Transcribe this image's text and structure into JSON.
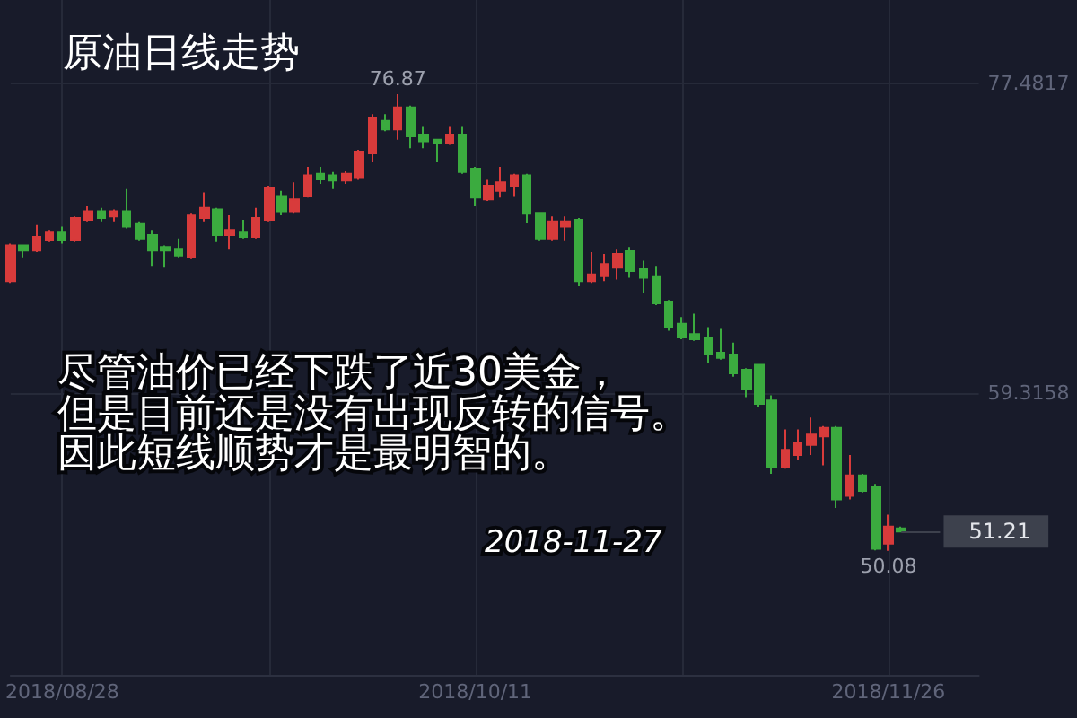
{
  "chart_data": {
    "type": "candlestick",
    "title": "原油日线走势",
    "categories": [
      null,
      null,
      null,
      null,
      "2018/08/28",
      null,
      null,
      null,
      null,
      null,
      null,
      null,
      null,
      null,
      null,
      null,
      null,
      null,
      null,
      null,
      null,
      null,
      null,
      null,
      null,
      null,
      null,
      null,
      null,
      null,
      null,
      null,
      null,
      null,
      null,
      null,
      "2018/10/11",
      null,
      null,
      null,
      null,
      null,
      null,
      null,
      null,
      null,
      null,
      null,
      null,
      null,
      null,
      null,
      null,
      null,
      null,
      null,
      null,
      null,
      null,
      null,
      null,
      null,
      null,
      null,
      null,
      null,
      null,
      null,
      "2018/11/26",
      null
    ],
    "ohlc": [
      [
        65.9,
        68.1,
        65.8,
        68.0
      ],
      [
        68.0,
        68.0,
        67.3,
        67.7
      ],
      [
        67.7,
        69.2,
        67.6,
        68.5
      ],
      [
        68.3,
        68.9,
        68.2,
        68.8
      ],
      [
        68.8,
        69.1,
        68.1,
        68.3
      ],
      [
        68.3,
        69.7,
        68.2,
        69.6
      ],
      [
        69.5,
        70.3,
        69.4,
        70.0
      ],
      [
        70.0,
        70.2,
        69.4,
        69.6
      ],
      [
        69.7,
        70.1,
        69.4,
        70.0
      ],
      [
        70.0,
        71.3,
        69.0,
        69.1
      ],
      [
        69.3,
        69.4,
        68.3,
        68.4
      ],
      [
        68.6,
        68.9,
        66.8,
        67.7
      ],
      [
        67.9,
        68.0,
        66.7,
        67.7
      ],
      [
        67.8,
        68.4,
        67.3,
        67.4
      ],
      [
        67.3,
        69.9,
        67.2,
        69.8
      ],
      [
        69.6,
        71.1,
        69.4,
        70.2
      ],
      [
        70.1,
        70.2,
        68.2,
        68.6
      ],
      [
        68.6,
        69.8,
        67.8,
        68.9
      ],
      [
        68.8,
        69.5,
        68.4,
        68.5
      ],
      [
        68.5,
        70.2,
        68.4,
        69.6
      ],
      [
        69.5,
        71.5,
        69.4,
        71.4
      ],
      [
        70.9,
        71.2,
        69.8,
        70.0
      ],
      [
        70.0,
        71.7,
        69.9,
        70.7
      ],
      [
        70.9,
        72.6,
        70.8,
        72.1
      ],
      [
        72.2,
        72.6,
        71.6,
        71.9
      ],
      [
        72.1,
        72.3,
        71.3,
        71.8
      ],
      [
        71.8,
        72.4,
        71.6,
        72.2
      ],
      [
        72.0,
        73.6,
        71.9,
        73.5
      ],
      [
        73.4,
        75.7,
        72.9,
        75.5
      ],
      [
        75.3,
        75.7,
        74.7,
        74.8
      ],
      [
        74.8,
        76.87,
        74.2,
        76.1
      ],
      [
        76.1,
        76.2,
        73.7,
        74.4
      ],
      [
        74.5,
        75.0,
        73.7,
        74.1
      ],
      [
        74.2,
        74.2,
        72.9,
        74.0
      ],
      [
        74.0,
        75.0,
        73.9,
        74.5
      ],
      [
        74.5,
        75.0,
        72.2,
        72.3
      ],
      [
        72.5,
        72.6,
        70.3,
        70.8
      ],
      [
        70.7,
        71.9,
        70.6,
        71.5
      ],
      [
        71.2,
        72.6,
        70.8,
        71.7
      ],
      [
        71.5,
        72.2,
        70.9,
        72.1
      ],
      [
        72.1,
        72.2,
        69.3,
        69.9
      ],
      [
        69.9,
        69.9,
        68.3,
        68.4
      ],
      [
        68.4,
        69.7,
        68.3,
        69.4
      ],
      [
        69.1,
        69.7,
        68.3,
        69.4
      ],
      [
        69.5,
        69.6,
        65.6,
        65.9
      ],
      [
        65.9,
        67.6,
        65.8,
        66.3
      ],
      [
        66.2,
        67.5,
        65.9,
        66.9
      ],
      [
        66.7,
        67.8,
        66.0,
        67.5
      ],
      [
        67.7,
        67.9,
        66.1,
        66.5
      ],
      [
        66.6,
        67.1,
        65.2,
        66.1
      ],
      [
        66.2,
        66.8,
        64.5,
        64.6
      ],
      [
        64.7,
        64.8,
        63.0,
        63.2
      ],
      [
        63.4,
        63.8,
        62.5,
        62.6
      ],
      [
        62.8,
        64.0,
        62.4,
        62.5
      ],
      [
        62.6,
        63.2,
        61.1,
        61.6
      ],
      [
        61.7,
        63.1,
        61.3,
        61.4
      ],
      [
        61.6,
        62.3,
        60.3,
        60.5
      ],
      [
        60.7,
        60.8,
        59.1,
        59.6
      ],
      [
        61.0,
        61.0,
        58.5,
        58.7
      ],
      [
        58.9,
        59.2,
        54.6,
        55.0
      ],
      [
        55.0,
        57.2,
        54.9,
        56.0
      ],
      [
        55.7,
        57.2,
        55.4,
        56.4
      ],
      [
        56.3,
        57.9,
        55.7,
        56.9
      ],
      [
        56.8,
        57.4,
        55.1,
        57.3
      ],
      [
        57.3,
        57.4,
        52.6,
        53.1
      ],
      [
        53.3,
        55.7,
        53.1,
        54.5
      ],
      [
        54.5,
        54.6,
        53.5,
        53.6
      ],
      [
        53.8,
        54.0,
        50.1,
        50.2
      ],
      [
        50.5,
        52.2,
        50.08,
        51.5
      ],
      [
        51.4,
        51.5,
        51.2,
        51.21
      ]
    ],
    "colors": [
      "#d83b3b",
      "#3bab3f",
      "#d83b3b",
      "#d83b3b",
      "#3bab3f",
      "#d83b3b",
      "#d83b3b",
      "#3bab3f",
      "#d83b3b",
      "#3bab3f",
      "#3bab3f",
      "#3bab3f",
      "#3bab3f",
      "#3bab3f",
      "#d83b3b",
      "#d83b3b",
      "#3bab3f",
      "#d83b3b",
      "#3bab3f",
      "#d83b3b",
      "#d83b3b",
      "#3bab3f",
      "#d83b3b",
      "#d83b3b",
      "#3bab3f",
      "#3bab3f",
      "#d83b3b",
      "#d83b3b",
      "#d83b3b",
      "#3bab3f",
      "#d83b3b",
      "#3bab3f",
      "#3bab3f",
      "#3bab3f",
      "#d83b3b",
      "#3bab3f",
      "#3bab3f",
      "#d83b3b",
      "#d83b3b",
      "#d83b3b",
      "#3bab3f",
      "#3bab3f",
      "#d83b3b",
      "#d83b3b",
      "#3bab3f",
      "#d83b3b",
      "#d83b3b",
      "#d83b3b",
      "#3bab3f",
      "#3bab3f",
      "#3bab3f",
      "#3bab3f",
      "#3bab3f",
      "#3bab3f",
      "#3bab3f",
      "#3bab3f",
      "#3bab3f",
      "#3bab3f",
      "#3bab3f",
      "#3bab3f",
      "#d83b3b",
      "#d83b3b",
      "#d83b3b",
      "#d83b3b",
      "#3bab3f",
      "#d83b3b",
      "#3bab3f",
      "#3bab3f",
      "#d83b3b",
      "#3bab3f"
    ],
    "ylim": [
      42.8,
      82.4
    ],
    "yticks": [
      59.3158,
      77.4817
    ],
    "grid": true,
    "ref_lines": [
      {
        "axis": "y",
        "value": 51.21,
        "label": "51.21",
        "color": "#3d414d"
      }
    ],
    "annotations": [
      "尽管油价已经下跌了近30美金，",
      "但是目前还是没有出现反转的信号。",
      "因此短线顺势才是最明智的。",
      "2018-11-27",
      {
        "text": "76.87",
        "y": 76.87
      },
      {
        "text": "50.08",
        "y": 50.08
      }
    ]
  }
}
